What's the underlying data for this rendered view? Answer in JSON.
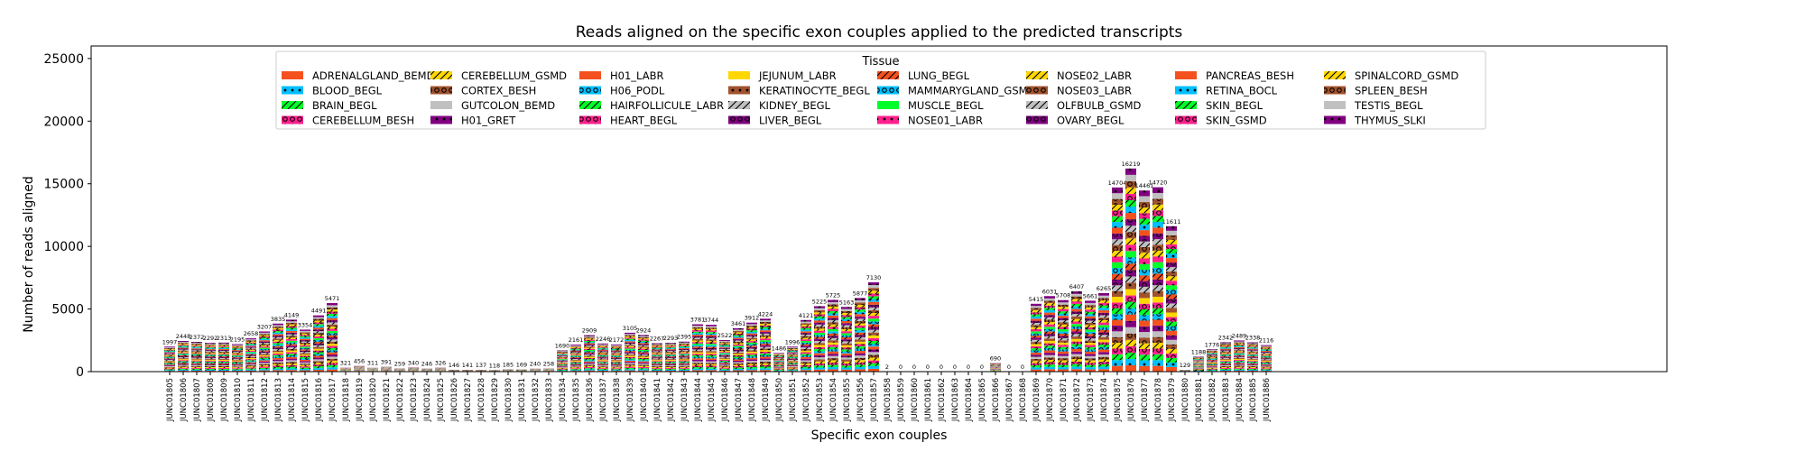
{
  "chart_data": {
    "type": "bar",
    "stacked": true,
    "title": "Reads aligned on the specific exon couples applied to the predicted transcripts",
    "xlabel": "Specific exon couples",
    "ylabel": "Number of reads aligned",
    "ylim": [
      0,
      26000
    ],
    "yticks": [
      0,
      5000,
      10000,
      15000,
      20000,
      25000
    ],
    "legend_title": "Tissue",
    "legend_position": "top-center",
    "grid": false,
    "categories": [
      "JUNC01805",
      "JUNC01806",
      "JUNC01807",
      "JUNC01808",
      "JUNC01809",
      "JUNC01810",
      "JUNC01811",
      "JUNC01812",
      "JUNC01813",
      "JUNC01814",
      "JUNC01815",
      "JUNC01816",
      "JUNC01817",
      "JUNC01818",
      "JUNC01819",
      "JUNC01820",
      "JUNC01821",
      "JUNC01822",
      "JUNC01823",
      "JUNC01824",
      "JUNC01825",
      "JUNC01826",
      "JUNC01827",
      "JUNC01828",
      "JUNC01829",
      "JUNC01830",
      "JUNC01831",
      "JUNC01832",
      "JUNC01833",
      "JUNC01834",
      "JUNC01835",
      "JUNC01836",
      "JUNC01837",
      "JUNC01838",
      "JUNC01839",
      "JUNC01840",
      "JUNC01841",
      "JUNC01842",
      "JUNC01843",
      "JUNC01844",
      "JUNC01845",
      "JUNC01846",
      "JUNC01847",
      "JUNC01848",
      "JUNC01849",
      "JUNC01850",
      "JUNC01851",
      "JUNC01852",
      "JUNC01853",
      "JUNC01854",
      "JUNC01855",
      "JUNC01856",
      "JUNC01857",
      "JUNC01858",
      "JUNC01859",
      "JUNC01860",
      "JUNC01861",
      "JUNC01862",
      "JUNC01863",
      "JUNC01864",
      "JUNC01865",
      "JUNC01866",
      "JUNC01867",
      "JUNC01868",
      "JUNC01869",
      "JUNC01870",
      "JUNC01871",
      "JUNC01872",
      "JUNC01873",
      "JUNC01874",
      "JUNC01875",
      "JUNC01876",
      "JUNC01877",
      "JUNC01878",
      "JUNC01879",
      "JUNC01880",
      "JUNC01881",
      "JUNC01882",
      "JUNC01883",
      "JUNC01884",
      "JUNC01885",
      "JUNC01886"
    ],
    "totals": [
      1997,
      2448,
      2372,
      2292,
      2313,
      2195,
      2658,
      3207,
      3835,
      4149,
      3354,
      4491,
      5471,
      321,
      456,
      311,
      391,
      259,
      340,
      246,
      326,
      146,
      141,
      137,
      118,
      185,
      169,
      240,
      258,
      1690,
      2161,
      2909,
      2246,
      2172,
      3105,
      2924,
      2267,
      2293,
      2395,
      3781,
      3744,
      2522,
      3461,
      3912,
      4224,
      1486,
      1996,
      4121,
      5225,
      5725,
      5163,
      5877,
      7130,
      2,
      0,
      0,
      0,
      0,
      0,
      0,
      0,
      690,
      0,
      0,
      5415,
      6031,
      5708,
      6407,
      5661,
      6265,
      14704,
      16219,
      14461,
      14720,
      11611,
      129,
      1188,
      1776,
      2342,
      2489,
      2338,
      2116
    ],
    "total_labels": [
      "1997",
      "2448",
      "2372",
      "2292",
      "2313",
      "2195",
      "2658",
      "3207",
      "3835",
      "4149",
      "3354",
      "4491",
      "5471",
      "321",
      "456",
      "311",
      "391",
      "259",
      "340",
      "246",
      "326",
      "146",
      "141",
      "137",
      "118",
      "185",
      "169",
      "240",
      "258",
      "1690",
      "2161",
      "2909",
      "2246",
      "2172",
      "3105",
      "2924",
      "2267",
      "2293",
      "2395",
      "3781",
      "3744",
      "2522",
      "3461",
      "3912",
      "4224",
      "1486",
      "1996",
      "4121",
      "5225",
      "5725",
      "5163",
      "5877",
      "7130",
      "2",
      "0",
      "0",
      "0",
      "0",
      "0",
      "0",
      "0",
      "690",
      "0",
      "0",
      "5415",
      "6031",
      "5708",
      "6407",
      "5661",
      "6265",
      "14704",
      "16219",
      "14461",
      "14720",
      "11611",
      "129",
      "1188",
      "1776",
      "2342",
      "2489",
      "2338",
      "2116"
    ],
    "series": [
      {
        "name": "ADRENALGLAND_BEMD",
        "color": "#f4511e",
        "hatch": "none"
      },
      {
        "name": "BLOOD_BEGL",
        "color": "#00bfff",
        "hatch": "dot"
      },
      {
        "name": "BRAIN_BEGL",
        "color": "#00ff2a",
        "hatch": "slash"
      },
      {
        "name": "CEREBELLUM_BESH",
        "color": "#ff1f8e",
        "hatch": "ring"
      },
      {
        "name": "CEREBELLUM_GSMD",
        "color": "#ffd700",
        "hatch": "slash"
      },
      {
        "name": "CORTEX_BESH",
        "color": "#a0522d",
        "hatch": "ring"
      },
      {
        "name": "GUTCOLON_BEMD",
        "color": "#c0c0c0",
        "hatch": "none"
      },
      {
        "name": "H01_GRET",
        "color": "#800080",
        "hatch": "dot"
      },
      {
        "name": "H01_LABR",
        "color": "#f4511e",
        "hatch": "none"
      },
      {
        "name": "H06_PODL",
        "color": "#00bfff",
        "hatch": "ring"
      },
      {
        "name": "HAIRFOLLICULE_LABR",
        "color": "#00ff2a",
        "hatch": "slash"
      },
      {
        "name": "HEART_BEGL",
        "color": "#ff1f8e",
        "hatch": "ring"
      },
      {
        "name": "JEJUNUM_LABR",
        "color": "#ffd700",
        "hatch": "none"
      },
      {
        "name": "KERATINOCYTE_BEGL",
        "color": "#a0522d",
        "hatch": "dot"
      },
      {
        "name": "KIDNEY_BEGL",
        "color": "#c0c0c0",
        "hatch": "slash"
      },
      {
        "name": "LIVER_BEGL",
        "color": "#800080",
        "hatch": "ring"
      },
      {
        "name": "LUNG_BEGL",
        "color": "#f4511e",
        "hatch": "slash"
      },
      {
        "name": "MAMMARYGLAND_GSMD",
        "color": "#00bfff",
        "hatch": "ring"
      },
      {
        "name": "MUSCLE_BEGL",
        "color": "#00ff2a",
        "hatch": "none"
      },
      {
        "name": "NOSE01_LABR",
        "color": "#ff1f8e",
        "hatch": "dot"
      },
      {
        "name": "NOSE02_LABR",
        "color": "#ffd700",
        "hatch": "slash"
      },
      {
        "name": "NOSE03_LABR",
        "color": "#a0522d",
        "hatch": "ring"
      },
      {
        "name": "OLFBULB_GSMD",
        "color": "#c0c0c0",
        "hatch": "slash"
      },
      {
        "name": "OVARY_BEGL",
        "color": "#800080",
        "hatch": "ring"
      },
      {
        "name": "PANCREAS_BESH",
        "color": "#f4511e",
        "hatch": "none"
      },
      {
        "name": "RETINA_BOCL",
        "color": "#00bfff",
        "hatch": "dot"
      },
      {
        "name": "SKIN_BEGL",
        "color": "#00ff2a",
        "hatch": "slash"
      },
      {
        "name": "SKIN_GSMD",
        "color": "#ff1f8e",
        "hatch": "ring"
      },
      {
        "name": "SPINALCORD_GSMD",
        "color": "#ffd700",
        "hatch": "slash"
      },
      {
        "name": "SPLEEN_BESH",
        "color": "#a0522d",
        "hatch": "ring"
      },
      {
        "name": "TESTIS_BEGL",
        "color": "#c0c0c0",
        "hatch": "none"
      },
      {
        "name": "THYMUS_SLKI",
        "color": "#800080",
        "hatch": "dot"
      }
    ]
  }
}
